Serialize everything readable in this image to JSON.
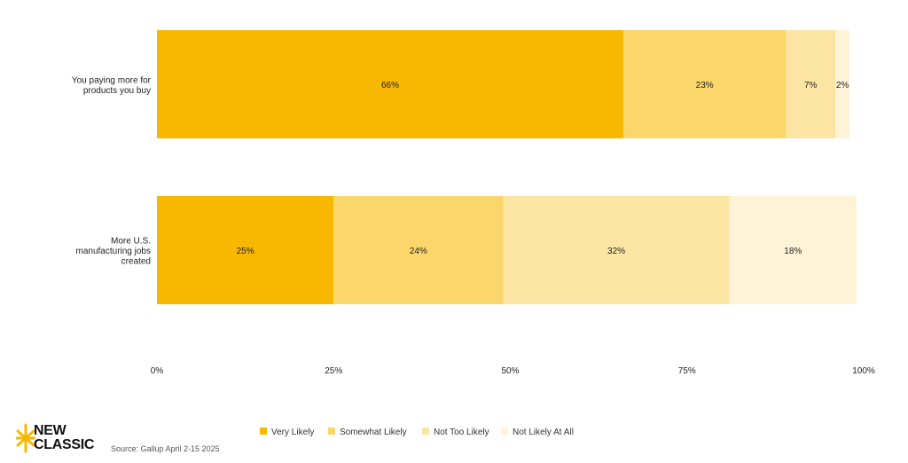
{
  "chart_data": {
    "type": "bar",
    "orientation": "horizontal",
    "stacked": true,
    "categories": [
      "You paying more for products you buy",
      "More U.S. manufacturing jobs created"
    ],
    "series": [
      {
        "name": "Very Likely",
        "color": "#F9B800",
        "values": [
          66,
          25
        ]
      },
      {
        "name": "Somewhat Likely",
        "color": "#FBD66A",
        "values": [
          23,
          24
        ]
      },
      {
        "name": "Not Too Likely",
        "color": "#FCE5A3",
        "values": [
          7,
          32
        ]
      },
      {
        "name": "Not Likely At All",
        "color": "#FEF3D6",
        "values": [
          2,
          18
        ]
      }
    ],
    "data_labels": [
      [
        "66%",
        "23%",
        "7%",
        "2%"
      ],
      [
        "25%",
        "24%",
        "32%",
        "18%"
      ]
    ],
    "xlim": [
      0,
      100
    ],
    "xticks": [
      "0%",
      "25%",
      "50%",
      "75%",
      "100%"
    ],
    "legend_position": "bottom",
    "grid": false
  },
  "source": "Source: Gallup April 2-15 2025",
  "logo_text": "NEW\nCLASSIC",
  "logo_color": "#F9B800"
}
